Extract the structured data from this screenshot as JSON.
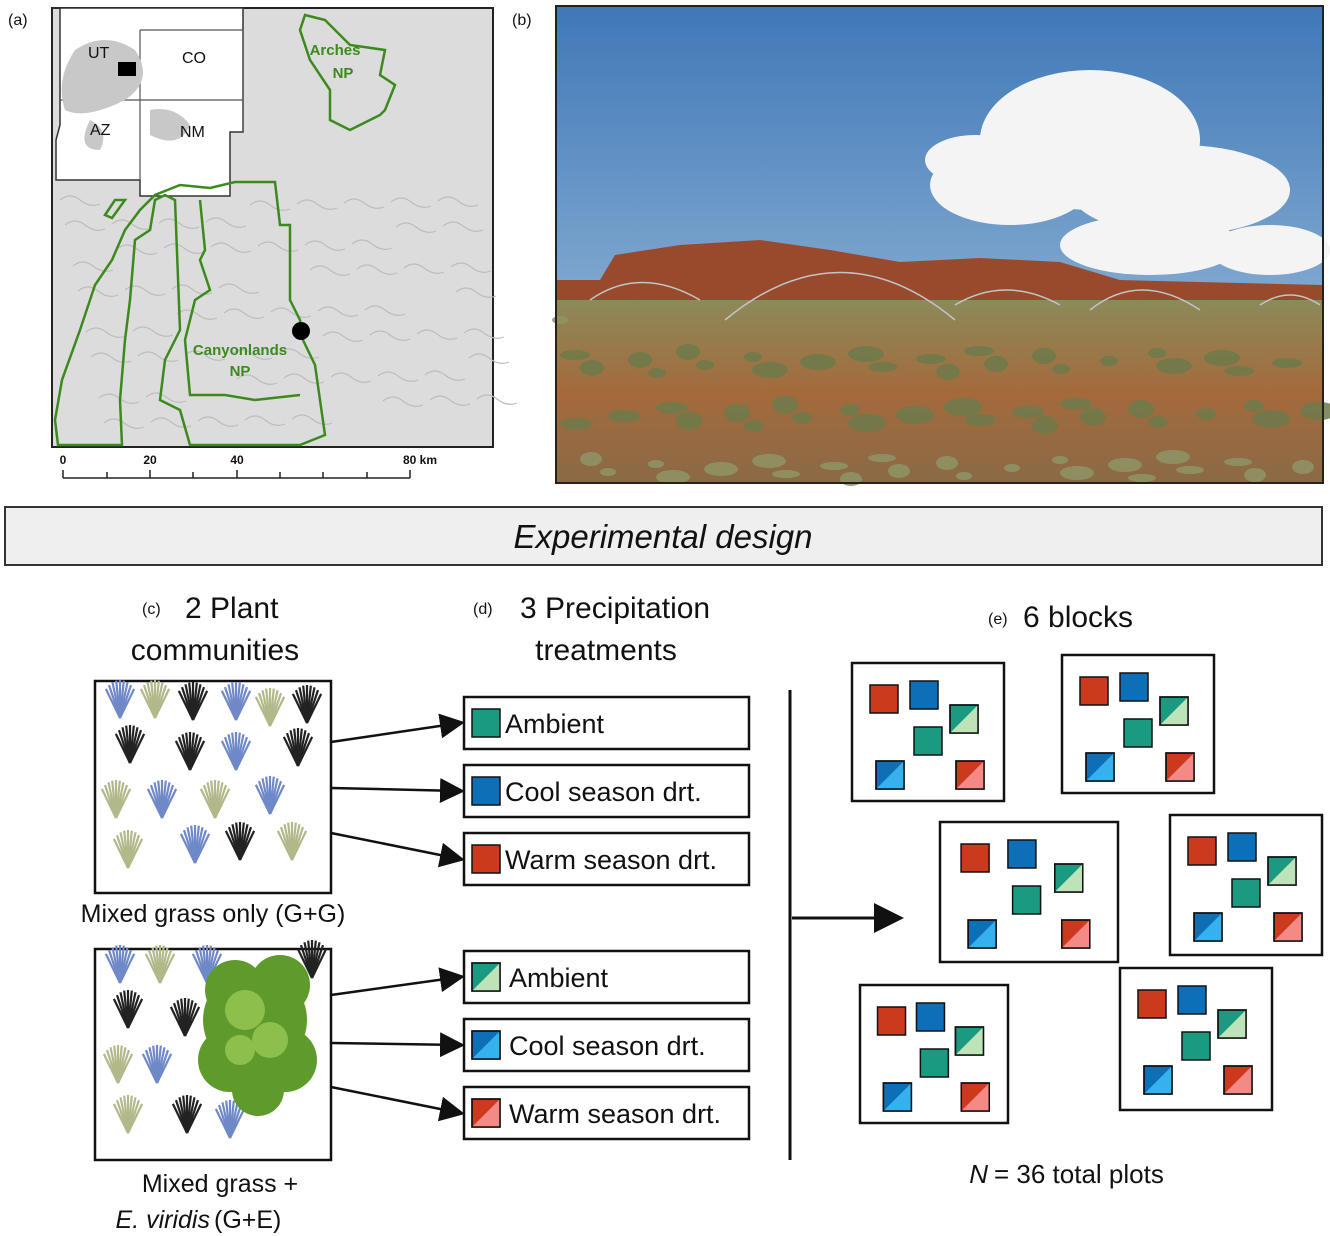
{
  "panels": {
    "a": "(a)",
    "b": "(b)",
    "c": "(c)",
    "d": "(d)",
    "e": "(e)"
  },
  "map": {
    "states": [
      "UT",
      "CO",
      "AZ",
      "NM"
    ],
    "arches": [
      "Arches",
      "NP"
    ],
    "canyonlands": [
      "Canyonlands",
      "NP"
    ],
    "scale_labels": [
      "0",
      "20",
      "40",
      "80 km"
    ]
  },
  "banner": "Experimental design",
  "communities": {
    "heading": [
      "2 Plant",
      "communities"
    ],
    "gg_caption": "Mixed grass only (G+G)",
    "ge_caption": [
      "Mixed grass +",
      "E. viridis",
      "(G+E)"
    ]
  },
  "treatments": {
    "heading": [
      "3 Precipitation",
      "treatments"
    ],
    "gg": [
      "Ambient",
      "Cool season drt.",
      "Warm season drt."
    ],
    "ge": [
      "Ambient",
      "Cool season drt.",
      "Warm season drt."
    ]
  },
  "blocks": {
    "heading": "6 blocks",
    "n_symbol": "N",
    "n_text": "= 36 total plots"
  }
}
